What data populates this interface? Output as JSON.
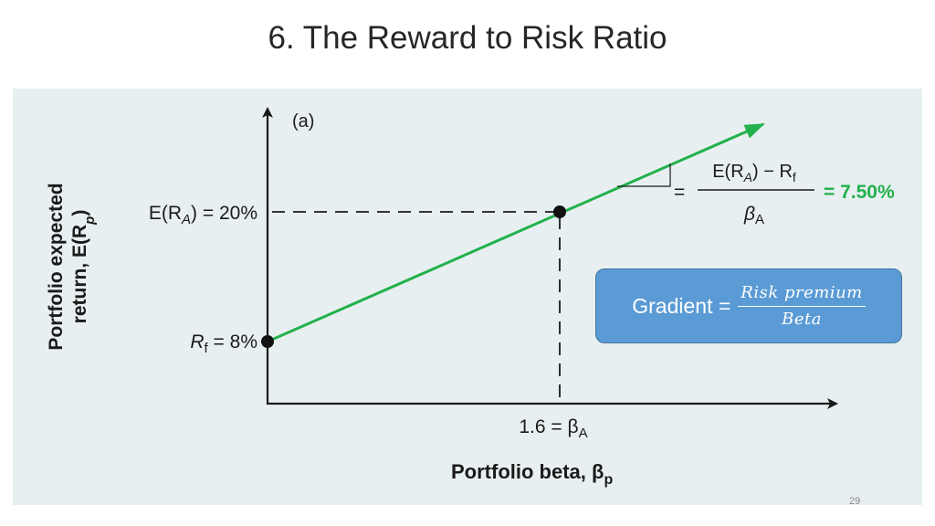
{
  "slide": {
    "title": "6. The Reward to Risk Ratio",
    "page_number": "29"
  },
  "figure": {
    "panel_label": "(a)",
    "y_axis_title_line1": "Portfolio expected",
    "y_axis_title_line2": "return, E(R",
    "y_axis_title_sub": "p",
    "y_axis_title_end": ")",
    "x_axis_title": "Portfolio beta, β",
    "x_axis_title_sub": "p",
    "era_label": "E(R",
    "era_label_sub": "A",
    "era_label_end": ") = 20%",
    "rf_label": "R",
    "rf_label_sub": "f",
    "rf_label_end": " = 8%",
    "beta_label": "1.6 = β",
    "beta_label_sub": "A",
    "slope_eq": "=",
    "slope_num": "E(R",
    "slope_num_sub1": "A",
    "slope_num_mid": ") − R",
    "slope_num_sub2": "f",
    "slope_den": "β",
    "slope_den_sub": "A",
    "slope_value": "= 7.50%",
    "line_color": "#22b14c",
    "axis_color": "#1a1a1a"
  },
  "callout": {
    "label": "Gradient =",
    "numerator": "Risk premium",
    "denominator": "Beta",
    "fill_color": "#5b9bd5"
  },
  "chart_data": {
    "type": "line",
    "series": [
      {
        "x": [
          0,
          1.6
        ],
        "y": [
          8,
          20
        ]
      }
    ],
    "points": [
      {
        "x": 0,
        "y": 8
      },
      {
        "x": 1.6,
        "y": 20
      }
    ],
    "slope": 7.5
  }
}
